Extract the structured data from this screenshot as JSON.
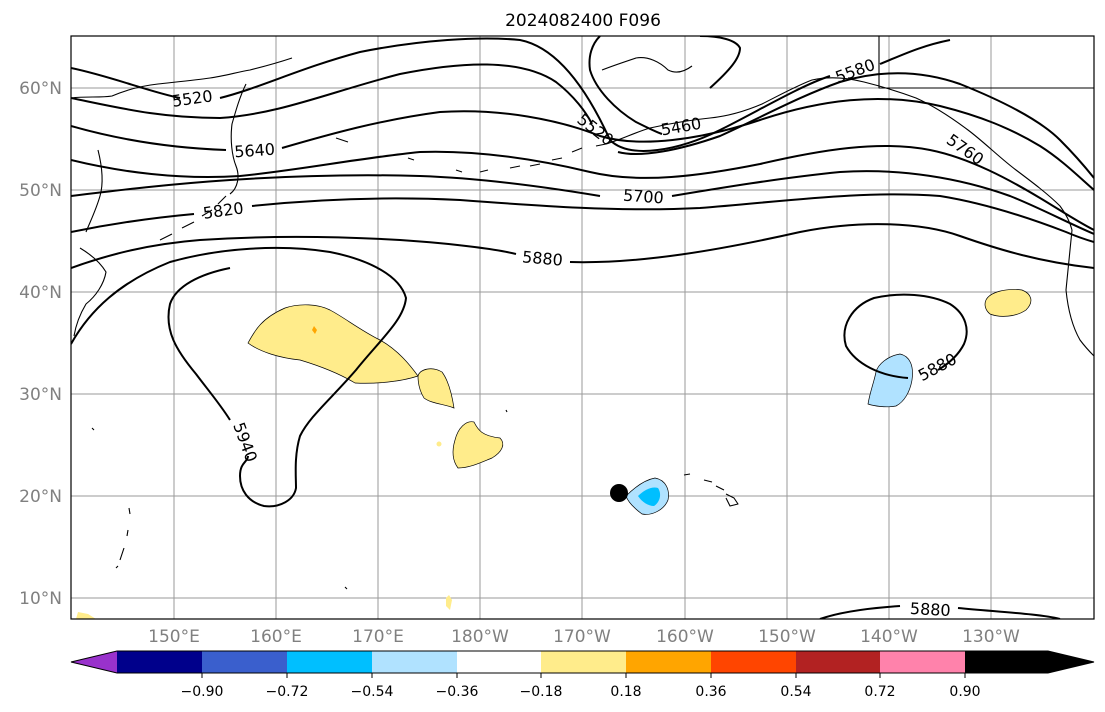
{
  "title": "2024082400 F096",
  "latitude_labels": [
    "60°N",
    "50°N",
    "40°N",
    "30°N",
    "20°N",
    "10°N"
  ],
  "longitude_labels": [
    "150°E",
    "160°E",
    "170°E",
    "180°W",
    "170°W",
    "160°W",
    "150°W",
    "140°W",
    "130°W"
  ],
  "contour_labels": [
    "5520",
    "5640",
    "5820",
    "5520",
    "5460",
    "5700",
    "5880",
    "5580",
    "5760",
    "5940",
    "5880",
    "5880"
  ],
  "colorbar": {
    "ticks": [
      "−0.90",
      "−0.72",
      "−0.54",
      "−0.36",
      "−0.18",
      "0.18",
      "0.36",
      "0.54",
      "0.72",
      "0.90"
    ],
    "colors": [
      "#9932cc",
      "#00008b",
      "#3a5fcd",
      "#00bfff",
      "#b0e2ff",
      "#ffffff",
      "#ffec8b",
      "#ffa500",
      "#ff4500",
      "#b22222",
      "#ff82ab"
    ]
  },
  "marker": "black-dot"
}
